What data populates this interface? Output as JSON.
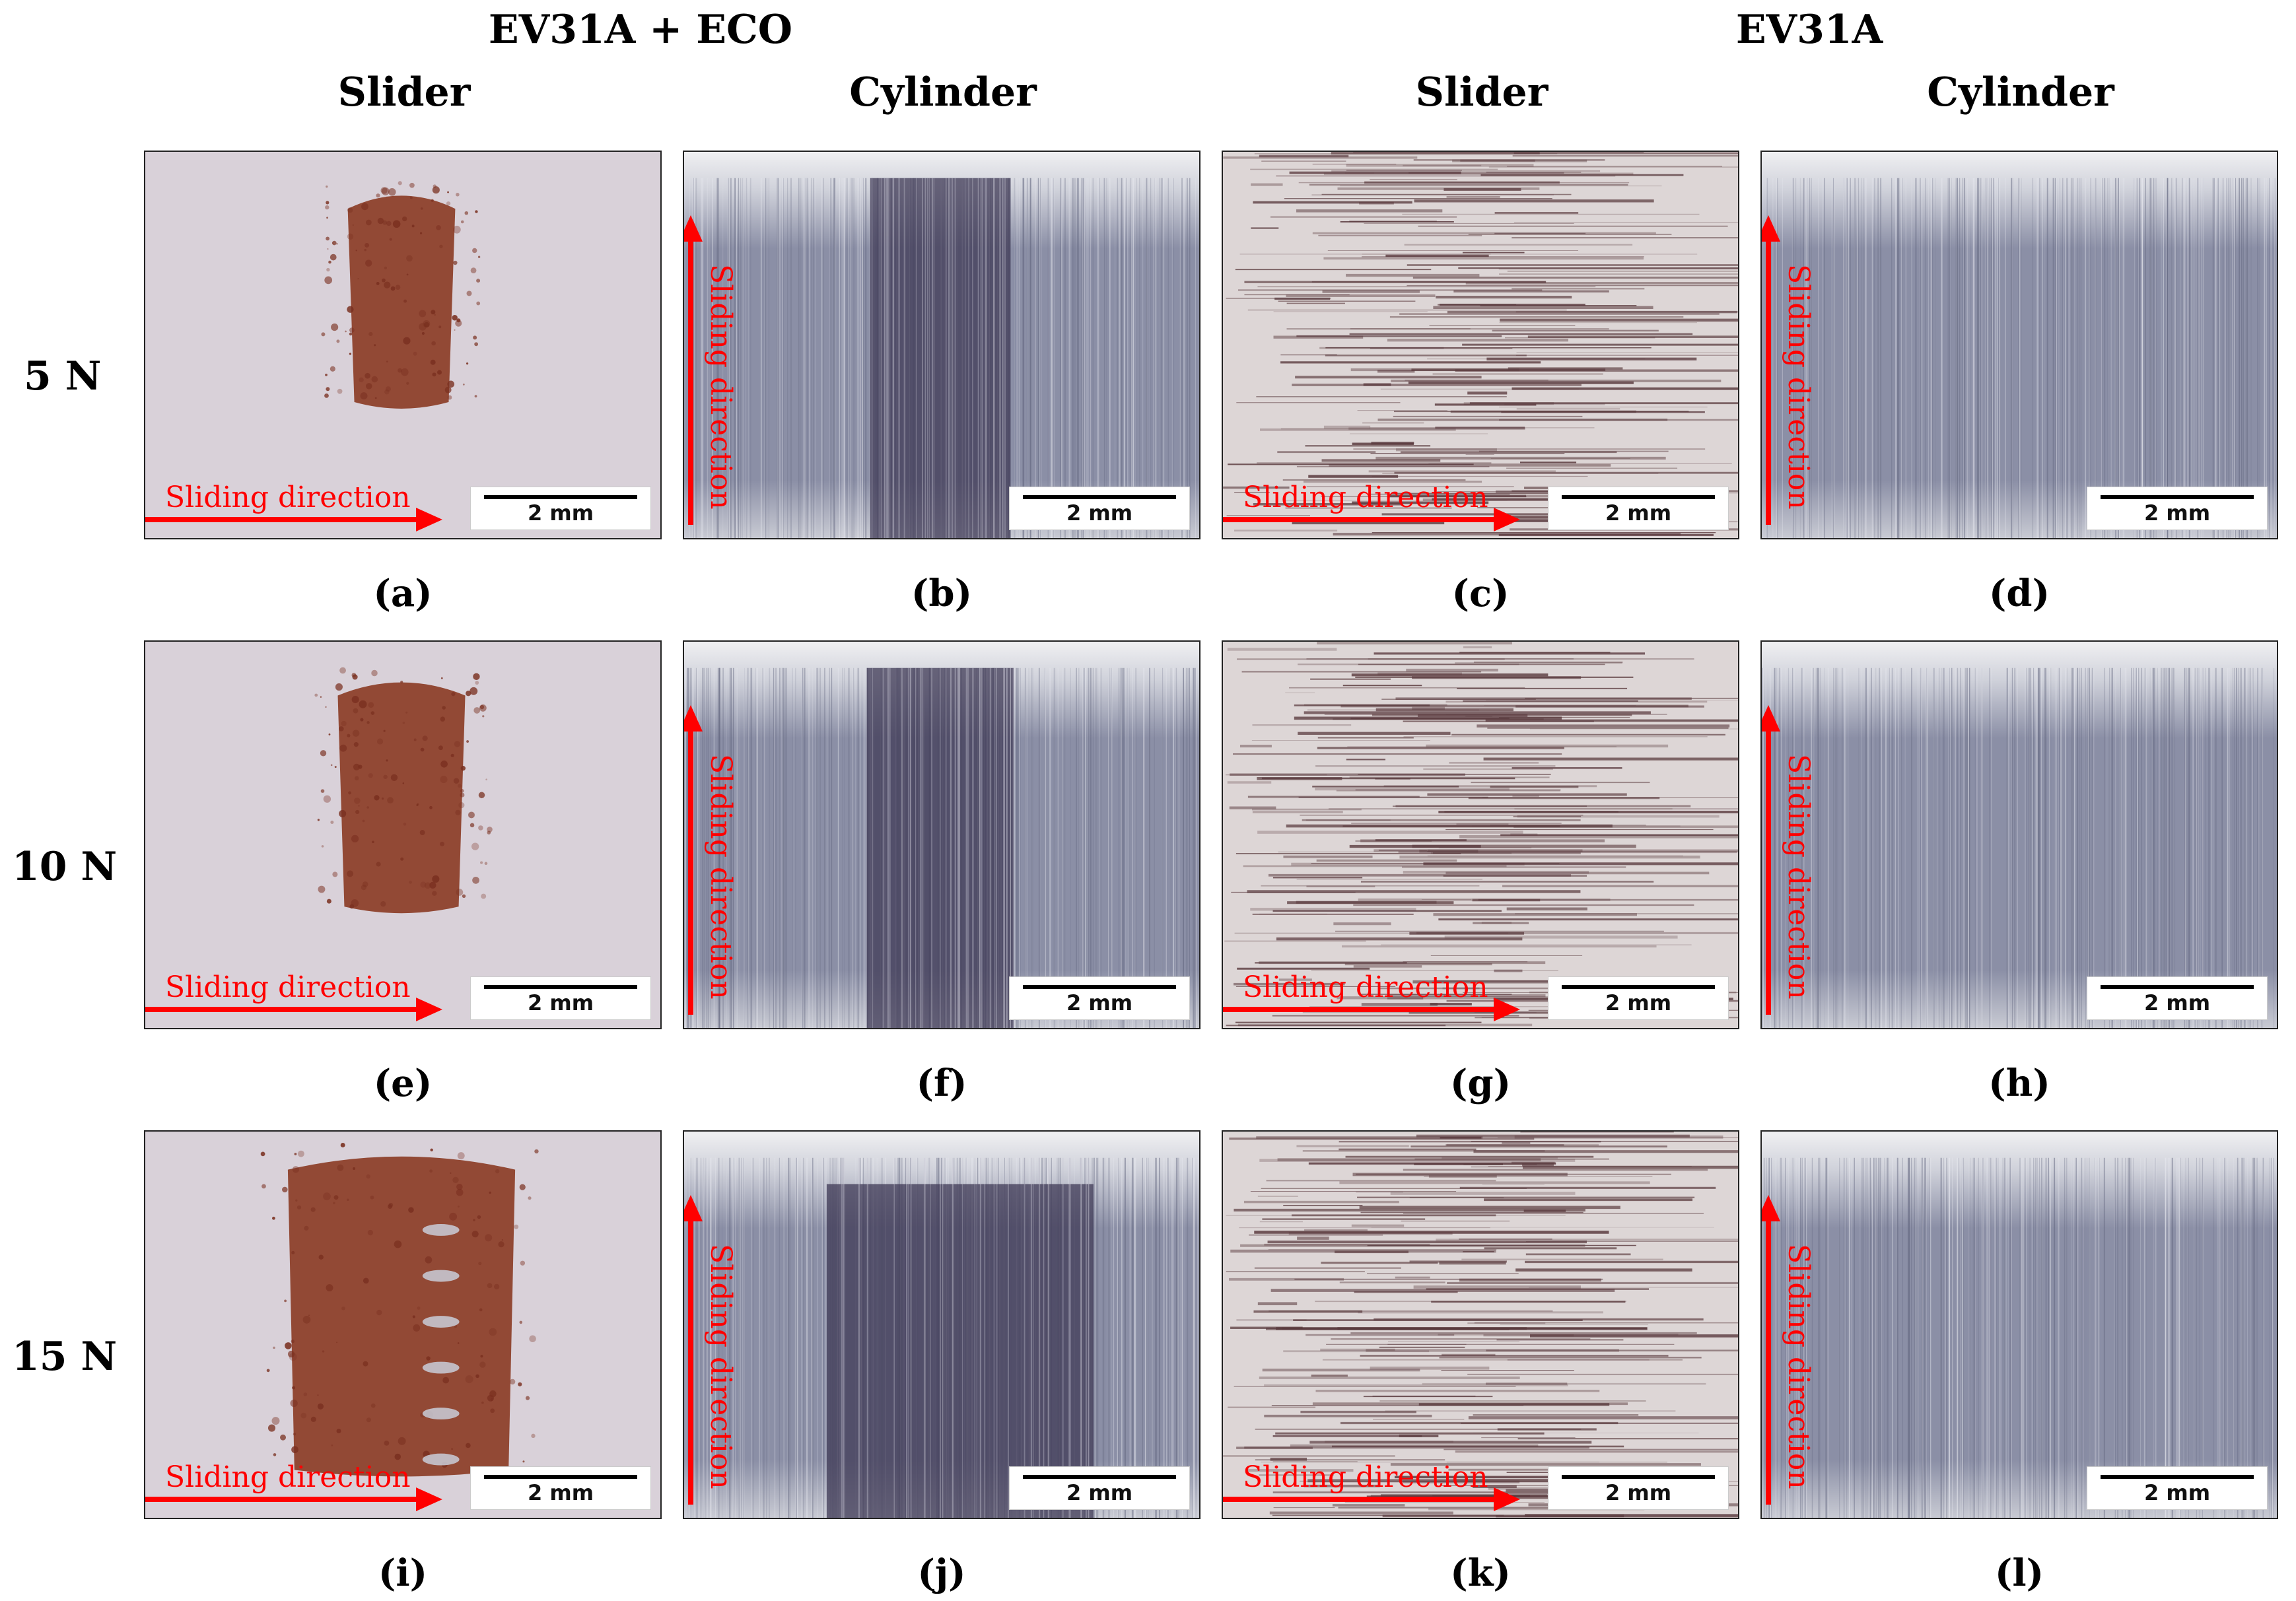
{
  "groups": [
    {
      "title": "EV31A + ECO"
    },
    {
      "title": "EV31A"
    }
  ],
  "columns": [
    {
      "title": "Slider"
    },
    {
      "title": "Cylinder"
    },
    {
      "title": "Slider"
    },
    {
      "title": "Cylinder"
    }
  ],
  "rows": [
    {
      "label": "5 N"
    },
    {
      "label": "10 N"
    },
    {
      "label": "15 N"
    }
  ],
  "panels": [
    {
      "caption": "(a)",
      "scale": "2 mm",
      "direction": "Sliding direction",
      "kind": "slider-eco",
      "wear": 0.22
    },
    {
      "caption": "(b)",
      "scale": "2 mm",
      "direction": "Sliding direction",
      "kind": "cyl-eco",
      "wear": 0.18
    },
    {
      "caption": "(c)",
      "scale": "2 mm",
      "direction": "Sliding direction",
      "kind": "slider-base",
      "wear": 0.5
    },
    {
      "caption": "(d)",
      "scale": "2 mm",
      "direction": "Sliding direction",
      "kind": "cyl-base",
      "wear": 0.4
    },
    {
      "caption": "(e)",
      "scale": "2 mm",
      "direction": "Sliding direction",
      "kind": "slider-eco",
      "wear": 0.3
    },
    {
      "caption": "(f)",
      "scale": "2 mm",
      "direction": "Sliding direction",
      "kind": "cyl-eco",
      "wear": 0.2
    },
    {
      "caption": "(g)",
      "scale": "2 mm",
      "direction": "Sliding direction",
      "kind": "slider-base",
      "wear": 0.55
    },
    {
      "caption": "(h)",
      "scale": "2 mm",
      "direction": "Sliding direction",
      "kind": "cyl-base",
      "wear": 0.5
    },
    {
      "caption": "(i)",
      "scale": "2 mm",
      "direction": "Sliding direction",
      "kind": "slider-eco",
      "wear": 0.7
    },
    {
      "caption": "(j)",
      "scale": "2 mm",
      "direction": "Sliding direction",
      "kind": "cyl-eco",
      "wear": 0.55
    },
    {
      "caption": "(k)",
      "scale": "2 mm",
      "direction": "Sliding direction",
      "kind": "slider-base",
      "wear": 0.6
    },
    {
      "caption": "(l)",
      "scale": "2 mm",
      "direction": "Sliding direction",
      "kind": "cyl-base",
      "wear": 0.5
    }
  ],
  "colors": {
    "arrow": "#ff0000",
    "slider_background": "#d9d1d9",
    "oxide": "#8a3a22",
    "cylinder_metal": "#8b8fa6",
    "wear_track": "#3f3a55"
  }
}
